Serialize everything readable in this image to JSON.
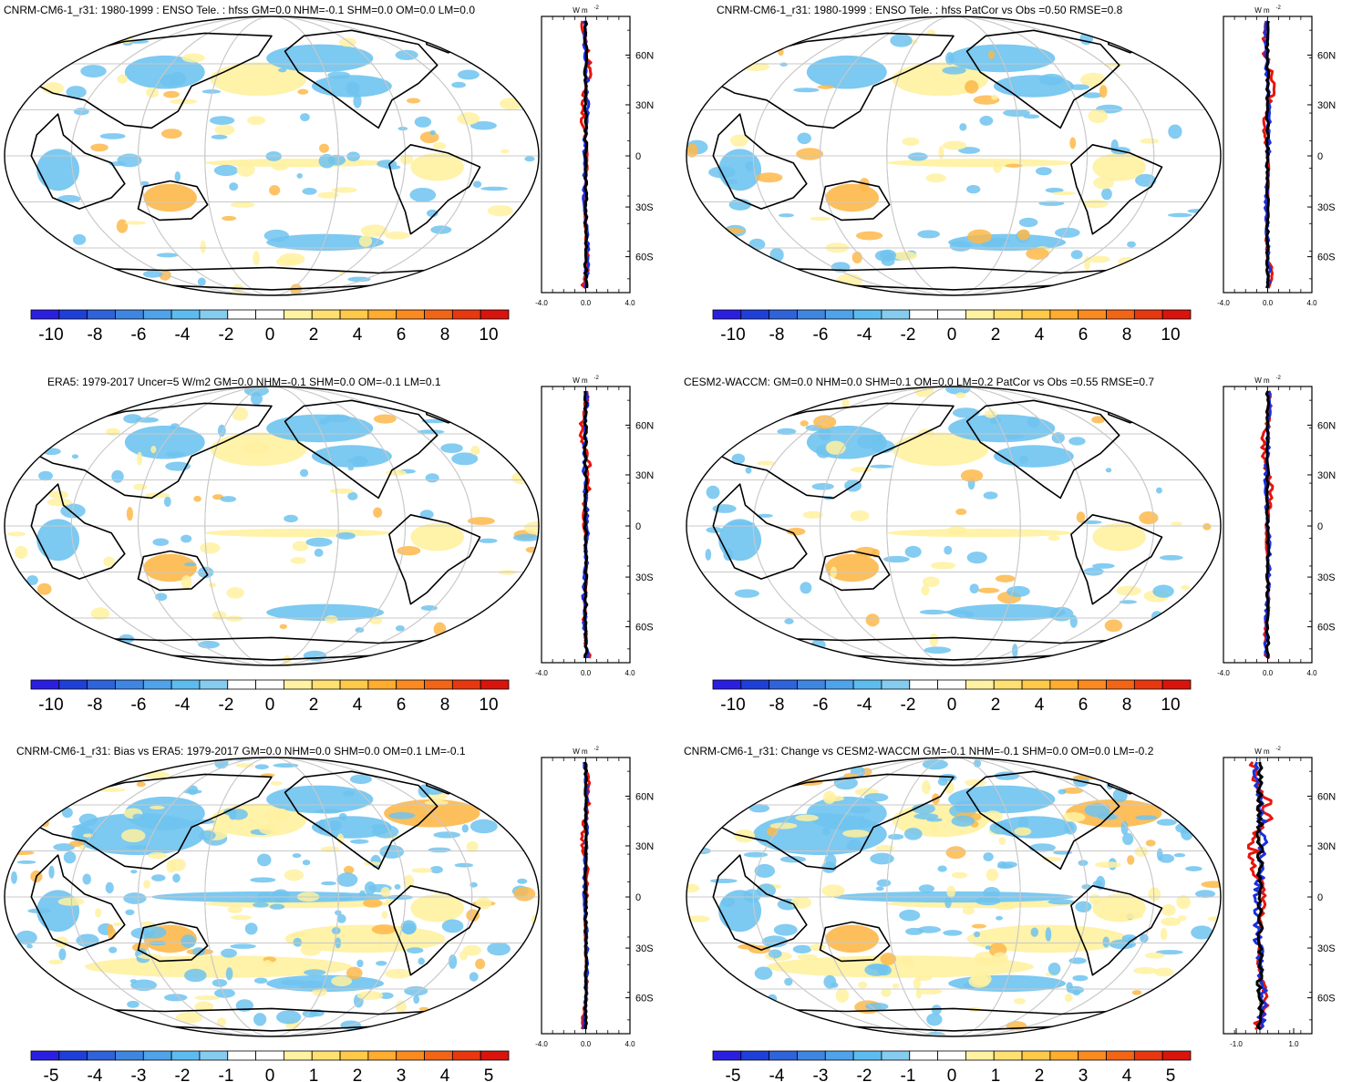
{
  "page_title": "",
  "panels": [
    {
      "id": "tl",
      "title": "CNRM-CM6-1_r31: 1980-1999 : ENSO Tele. : hfss GM=0.0 NHM=-0.1 SHM=0.0 OM=0.0 LM=0.0",
      "units_label": "W m",
      "units_exp": "-2",
      "colorbar_ticks": [
        "-10",
        "-8",
        "-6",
        "-4",
        "-2",
        "0",
        "2",
        "4",
        "6",
        "8",
        "10"
      ],
      "profile_x_ticks": [
        "-4.0",
        "0.0",
        "4.0"
      ],
      "profile_lat_labels": [
        "60N",
        "30N",
        "0",
        "30S",
        "60S"
      ]
    },
    {
      "id": "tr",
      "title": "CNRM-CM6-1_r31: 1980-1999 : ENSO Tele. : hfss PatCor vs Obs =0.50 RMSE=0.8",
      "units_label": "W m",
      "units_exp": "-2",
      "colorbar_ticks": [
        "-10",
        "-8",
        "-6",
        "-4",
        "-2",
        "0",
        "2",
        "4",
        "6",
        "8",
        "10"
      ],
      "profile_x_ticks": [
        "-4.0",
        "0.0",
        "4.0"
      ],
      "profile_lat_labels": [
        "60N",
        "30N",
        "0",
        "30S",
        "60S"
      ]
    },
    {
      "id": "ml",
      "title": "ERA5: 1979-2017 Uncer=5 W/m2 GM=0.0 NHM=-0.1 SHM=0.0 OM=-0.1 LM=0.1",
      "units_label": "W m",
      "units_exp": "-2",
      "colorbar_ticks": [
        "-10",
        "-8",
        "-6",
        "-4",
        "-2",
        "0",
        "2",
        "4",
        "6",
        "8",
        "10"
      ],
      "profile_x_ticks": [
        "-4.0",
        "0.0",
        "4.0"
      ],
      "profile_lat_labels": [
        "60N",
        "30N",
        "0",
        "30S",
        "60S"
      ]
    },
    {
      "id": "mr",
      "title": "CESM2-WACCM: GM=0.0 NHM=0.0 SHM=0.1 OM=0.0 LM=0.2 PatCor vs Obs =0.55 RMSE=0.7",
      "units_label": "W m",
      "units_exp": "-2",
      "colorbar_ticks": [
        "-10",
        "-8",
        "-6",
        "-4",
        "-2",
        "0",
        "2",
        "4",
        "6",
        "8",
        "10"
      ],
      "profile_x_ticks": [
        "-4.0",
        "0.0",
        "4.0"
      ],
      "profile_lat_labels": [
        "60N",
        "30N",
        "0",
        "30S",
        "60S"
      ]
    },
    {
      "id": "bl",
      "title": "CNRM-CM6-1_r31: Bias vs ERA5: 1979-2017 GM=0.0 NHM=0.0 SHM=0.0 OM=0.1 LM=-0.1",
      "units_label": "W m",
      "units_exp": "-2",
      "colorbar_ticks": [
        "-5",
        "-4",
        "-3",
        "-2",
        "-1",
        "0",
        "1",
        "2",
        "3",
        "4",
        "5"
      ],
      "profile_x_ticks": [
        "-4.0",
        "0.0",
        "4.0"
      ],
      "profile_lat_labels": [
        "60N",
        "30N",
        "0",
        "30S",
        "60S"
      ]
    },
    {
      "id": "br",
      "title": "CNRM-CM6-1_r31: Change vs CESM2-WACCM GM=-0.1 NHM=-0.1 SHM=0.0 OM=0.0 LM=-0.2",
      "units_label": "W m",
      "units_exp": "-2",
      "colorbar_ticks": [
        "-5",
        "-4",
        "-3",
        "-2",
        "-1",
        "0",
        "1",
        "2",
        "3",
        "4",
        "5"
      ],
      "profile_x_ticks": [
        "-1.0",
        "1.0"
      ],
      "profile_lat_labels": [
        "60N",
        "30N",
        "0",
        "30S",
        "60S"
      ]
    }
  ],
  "colorbar_colors": [
    "#2a1fe0",
    "#1f3fd9",
    "#2f63d9",
    "#3f86e0",
    "#4fa3ea",
    "#5dbcef",
    "#86ccef",
    "#ffffff",
    "#ffffff",
    "#fff2a3",
    "#ffe070",
    "#ffc94a",
    "#ffac2f",
    "#fb8a20",
    "#f26516",
    "#e8380f",
    "#d9140d"
  ],
  "colors": {
    "profile_red": "#e8140d",
    "profile_blue": "#1a2fe0",
    "profile_black": "#000000",
    "grid": "#c8c8c8",
    "map_blue": "#6ec3ef",
    "map_yellow": "#fff1a0",
    "map_orange": "#fdb84a"
  }
}
